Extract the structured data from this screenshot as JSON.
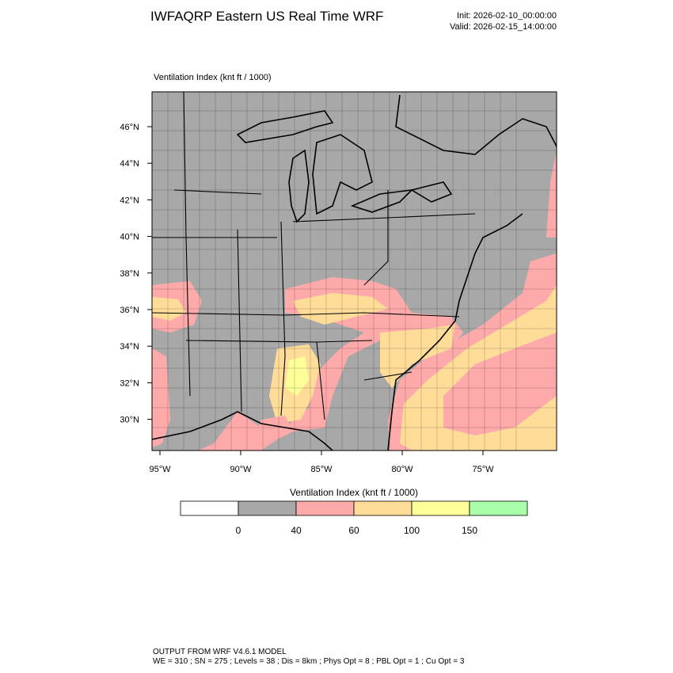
{
  "header": {
    "title": "IWFAQRP Eastern US Real Time WRF",
    "init": "Init: 2026-02-10_00:00:00",
    "valid": "Valid: 2026-02-15_14:00:00"
  },
  "map": {
    "label": "Ventilation Index   (knt ft / 1000)",
    "lat_labels": [
      "46°N",
      "44°N",
      "42°N",
      "40°N",
      "38°N",
      "36°N",
      "34°N",
      "32°N",
      "30°N"
    ],
    "lon_labels": [
      "95°W",
      "90°W",
      "85°W",
      "80°W",
      "75°W"
    ]
  },
  "colorbar": {
    "title": "Ventilation Index  (knt ft / 1000)",
    "colors": [
      "#ffffff",
      "#a8a8a8",
      "#ffaaaa",
      "#ffdd99",
      "#ffff99",
      "#aaffaa"
    ],
    "labels": [
      "0",
      "40",
      "60",
      "100",
      "150"
    ]
  },
  "footer": {
    "line1": "OUTPUT FROM WRF V4.6.1 MODEL",
    "line2": "WE = 310 ; SN = 275 ; Levels = 38 ; Dis = 8km ; Phys Opt = 8 ; PBL Opt = 1 ; Cu Opt = 3"
  }
}
